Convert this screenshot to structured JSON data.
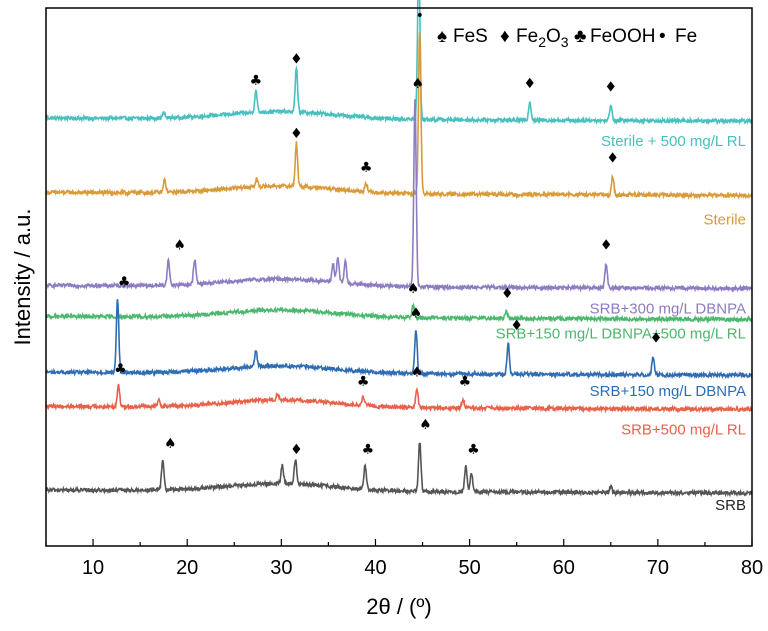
{
  "chart_data": {
    "type": "line",
    "xlabel": "2θ / (º)",
    "ylabel": "Intensity / a.u.",
    "xlim": [
      5,
      80
    ],
    "x_ticks": [
      10,
      20,
      30,
      40,
      50,
      60,
      70,
      80
    ],
    "y_ticks": false,
    "grid": false,
    "legend": {
      "placement": "top-right",
      "entries": [
        {
          "symbol": "♠",
          "label": "FeS"
        },
        {
          "symbol": "♦",
          "label": "Fe2O3"
        },
        {
          "symbol": "♣",
          "label": "FeOOH"
        },
        {
          "symbol": "●",
          "label": "Fe"
        }
      ]
    },
    "series": [
      {
        "name": "Sterile + 500 mg/L RL",
        "color": "#47C0BE",
        "baseline": 6.0,
        "peaks": [
          [
            17.5,
            0.08
          ],
          [
            27.3,
            0.35
          ],
          [
            31.6,
            0.7
          ],
          [
            44.6,
            2.6
          ],
          [
            56.4,
            0.3
          ],
          [
            65.0,
            0.25
          ]
        ],
        "markers": [
          {
            "x": 27.3,
            "symbol": "♣"
          },
          {
            "x": 31.6,
            "symbol": "♦"
          },
          {
            "x": 44.6,
            "symbol": "●"
          },
          {
            "x": 56.4,
            "symbol": "♦"
          },
          {
            "x": 65.0,
            "symbol": "♦"
          }
        ]
      },
      {
        "name": "Sterile",
        "color": "#D89B3A",
        "baseline": 4.8,
        "peaks": [
          [
            17.6,
            0.2
          ],
          [
            27.4,
            0.12
          ],
          [
            31.6,
            0.7
          ],
          [
            39.0,
            0.15
          ],
          [
            44.7,
            2.6
          ],
          [
            65.2,
            0.3
          ]
        ],
        "markers": [
          {
            "x": 31.6,
            "symbol": "♦"
          },
          {
            "x": 39.0,
            "symbol": "♣"
          },
          {
            "x": 44.7,
            "symbol": "●"
          },
          {
            "x": 65.2,
            "symbol": "♦"
          }
        ]
      },
      {
        "name": "SRB+300 mg/L DBNPA",
        "color": "#8E7CC3",
        "baseline": 3.3,
        "peaks": [
          [
            18.0,
            0.4
          ],
          [
            20.8,
            0.4
          ],
          [
            35.5,
            0.3
          ],
          [
            36.0,
            0.4
          ],
          [
            36.8,
            0.35
          ],
          [
            44.2,
            3.0
          ],
          [
            64.5,
            0.4
          ]
        ],
        "markers": [
          {
            "x": 19.2,
            "symbol": "♠"
          },
          {
            "x": 44.5,
            "symbol": "♠"
          },
          {
            "x": 64.5,
            "symbol": "♦"
          }
        ]
      },
      {
        "name": "SRB+150 mg/L DBNPA+500 mg/L RL",
        "color": "#4CB86E",
        "baseline": 2.8,
        "peaks": [
          [
            44.0,
            0.2
          ],
          [
            53.9,
            0.12
          ]
        ],
        "markers": [
          {
            "x": 44.0,
            "symbol": "♠"
          },
          {
            "x": 54.0,
            "symbol": "♦"
          }
        ]
      },
      {
        "name": "SRB+150 mg/L DBNPA",
        "color": "#2E6DB4",
        "baseline": 1.9,
        "peaks": [
          [
            12.6,
            1.2
          ],
          [
            27.3,
            0.25
          ],
          [
            44.3,
            0.7
          ],
          [
            54.1,
            0.5
          ],
          [
            69.5,
            0.3
          ]
        ],
        "markers": [
          {
            "x": 13.3,
            "symbol": "♣"
          },
          {
            "x": 44.3,
            "symbol": "♠"
          },
          {
            "x": 55.0,
            "symbol": "♦"
          },
          {
            "x": 69.8,
            "symbol": "♦"
          }
        ]
      },
      {
        "name": "SRB+500 mg/L RL",
        "color": "#E8624A",
        "baseline": 1.35,
        "peaks": [
          [
            12.7,
            0.35
          ],
          [
            17.0,
            0.1
          ],
          [
            29.6,
            0.1
          ],
          [
            38.7,
            0.15
          ],
          [
            44.4,
            0.3
          ],
          [
            49.3,
            0.15
          ]
        ],
        "markers": [
          {
            "x": 12.9,
            "symbol": "♣"
          },
          {
            "x": 38.7,
            "symbol": "♣"
          },
          {
            "x": 44.4,
            "symbol": "♠"
          },
          {
            "x": 49.5,
            "symbol": "♣"
          }
        ]
      },
      {
        "name": "SRB",
        "color": "#555555",
        "baseline": 0.0,
        "peaks": [
          [
            17.4,
            0.5
          ],
          [
            30.1,
            0.3
          ],
          [
            31.5,
            0.4
          ],
          [
            38.9,
            0.4
          ],
          [
            44.7,
            0.8
          ],
          [
            49.6,
            0.4
          ],
          [
            50.2,
            0.3
          ],
          [
            65.0,
            0.1
          ]
        ],
        "markers": [
          {
            "x": 18.2,
            "symbol": "♠"
          },
          {
            "x": 31.6,
            "symbol": "♦"
          },
          {
            "x": 39.2,
            "symbol": "♣"
          },
          {
            "x": 45.3,
            "symbol": "♠"
          },
          {
            "x": 50.4,
            "symbol": "♣"
          }
        ]
      }
    ]
  }
}
